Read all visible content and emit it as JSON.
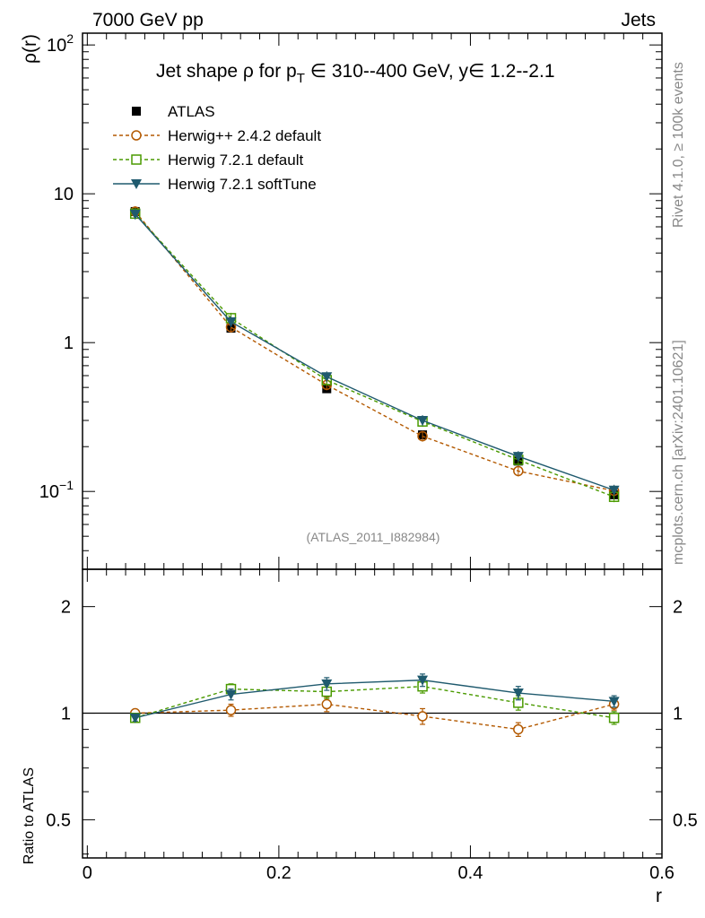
{
  "header": {
    "left": "7000 GeV pp",
    "right": "Jets"
  },
  "side_labels": {
    "upper": "Rivet 4.1.0, ≥ 100k events",
    "lower": "mcplots.cern.ch [arXiv:2401.10621]"
  },
  "watermark": "(ATLAS_2011_I882984)",
  "colors": {
    "atlas": "#000000",
    "herwig_old": "#b35900",
    "herwig_default": "#4a9a00",
    "herwig_soft": "#1f5a6e"
  },
  "chart_data": [
    {
      "type": "line",
      "scale": "log",
      "title": {
        "prefix": "Jet shape ρ for p",
        "sub": "T",
        "suffix": " ∈ 310--400 GeV, y∈ 1.2--2.1"
      },
      "ylabel": "ρ(r)",
      "xlabel": "r",
      "xlim": [
        -0.005,
        0.6
      ],
      "ylim": [
        0.03,
        120
      ],
      "yticks": [
        {
          "label": "10",
          "sup": "2",
          "value": 100
        },
        {
          "label": "10",
          "sup": "",
          "value": 10
        },
        {
          "label": "1",
          "sup": "",
          "value": 1
        },
        {
          "label": "10",
          "sup": "−1",
          "value": 0.1
        }
      ],
      "x": [
        0.05,
        0.15,
        0.25,
        0.35,
        0.45,
        0.55
      ],
      "series": [
        {
          "name": "ATLAS",
          "style": "atlas",
          "values": [
            7.6,
            1.25,
            0.49,
            0.24,
            0.16,
            0.095
          ]
        },
        {
          "name": "Herwig++ 2.4.2 default",
          "style": "herwig_old",
          "values": [
            7.6,
            1.27,
            0.52,
            0.235,
            0.137,
            0.101
          ]
        },
        {
          "name": "Herwig 7.2.1 default",
          "style": "herwig_default",
          "values": [
            7.35,
            1.46,
            0.56,
            0.295,
            0.163,
            0.092
          ]
        },
        {
          "name": "Herwig 7.2.1 softTune",
          "style": "herwig_soft",
          "values": [
            7.3,
            1.38,
            0.59,
            0.3,
            0.172,
            0.102
          ]
        }
      ]
    },
    {
      "type": "line",
      "scale": "log",
      "ylabel": "Ratio to ATLAS",
      "xlabel": "r",
      "xlim": [
        -0.005,
        0.6
      ],
      "ylim": [
        0.39,
        2.55
      ],
      "yticks": [
        {
          "label": "2",
          "value": 2
        },
        {
          "label": "1",
          "value": 1
        },
        {
          "label": "0.5",
          "value": 0.5
        }
      ],
      "xticks": [
        {
          "label": "0",
          "value": 0
        },
        {
          "label": "0.2",
          "value": 0.2
        },
        {
          "label": "0.4",
          "value": 0.4
        },
        {
          "label": "0.6",
          "value": 0.6
        }
      ],
      "x": [
        0.05,
        0.15,
        0.25,
        0.35,
        0.45,
        0.55
      ],
      "series": [
        {
          "name": "Herwig++ 2.4.2 default",
          "style": "herwig_old",
          "values": [
            1.0,
            1.02,
            1.06,
            0.98,
            0.9,
            1.06
          ],
          "err": [
            0.02,
            0.04,
            0.05,
            0.05,
            0.04,
            0.04
          ]
        },
        {
          "name": "Herwig 7.2.1 default",
          "style": "herwig_default",
          "values": [
            0.97,
            1.17,
            1.15,
            1.19,
            1.07,
            0.97
          ],
          "err": [
            0.02,
            0.04,
            0.05,
            0.05,
            0.05,
            0.04
          ]
        },
        {
          "name": "Herwig 7.2.1 softTune",
          "style": "herwig_soft",
          "values": [
            0.97,
            1.13,
            1.21,
            1.24,
            1.14,
            1.08
          ],
          "err": [
            0.02,
            0.04,
            0.05,
            0.05,
            0.05,
            0.04
          ]
        }
      ]
    }
  ]
}
